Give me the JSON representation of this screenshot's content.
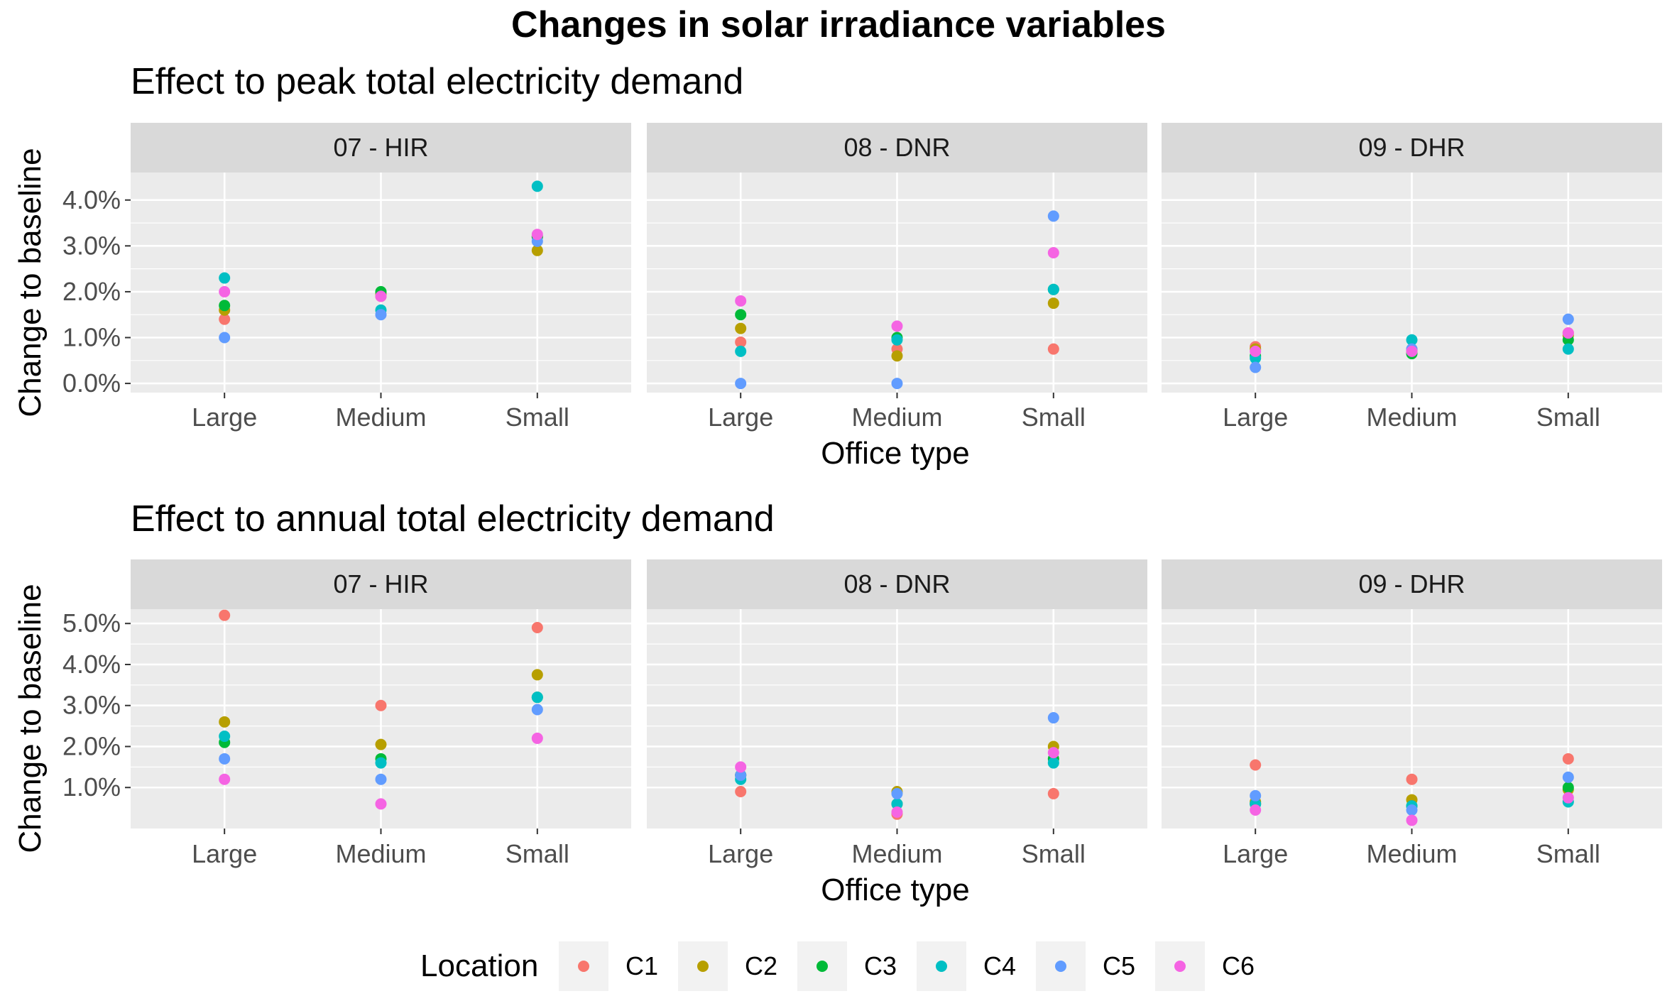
{
  "title": "Changes in solar irradiance variables",
  "chart_data": [
    {
      "type": "scatter",
      "subtitle": "Effect to peak total electricity demand",
      "xlabel": "Office type",
      "ylabel": "Change to baseline",
      "categories": [
        "Large",
        "Medium",
        "Small"
      ],
      "ylim": [
        -0.2,
        4.6
      ],
      "yticks": [
        0,
        1,
        2,
        3,
        4
      ],
      "ytick_labels": [
        "0.0%",
        "1.0%",
        "2.0%",
        "3.0%",
        "4.0%"
      ],
      "grid": true,
      "facets": [
        {
          "name": "07 - HIR",
          "series": [
            {
              "name": "C1",
              "values": [
                1.4,
                1.9,
                3.2
              ]
            },
            {
              "name": "C2",
              "values": [
                1.6,
                1.95,
                2.9
              ]
            },
            {
              "name": "C3",
              "values": [
                1.7,
                2.0,
                3.2
              ]
            },
            {
              "name": "C4",
              "values": [
                2.3,
                1.6,
                4.3
              ]
            },
            {
              "name": "C5",
              "values": [
                1.0,
                1.5,
                3.1
              ]
            },
            {
              "name": "C6",
              "values": [
                2.0,
                1.9,
                3.25
              ]
            }
          ]
        },
        {
          "name": "08 - DNR",
          "series": [
            {
              "name": "C1",
              "values": [
                0.9,
                0.75,
                0.75
              ]
            },
            {
              "name": "C2",
              "values": [
                1.2,
                0.6,
                1.75
              ]
            },
            {
              "name": "C3",
              "values": [
                1.5,
                1.0,
                2.05
              ]
            },
            {
              "name": "C4",
              "values": [
                0.7,
                0.95,
                2.05
              ]
            },
            {
              "name": "C5",
              "values": [
                0.0,
                0.0,
                3.65
              ]
            },
            {
              "name": "C6",
              "values": [
                1.8,
                1.25,
                2.85
              ]
            }
          ]
        },
        {
          "name": "09 - DHR",
          "series": [
            {
              "name": "C1",
              "values": [
                0.8,
                0.75,
                1.1
              ]
            },
            {
              "name": "C2",
              "values": [
                0.75,
                0.7,
                1.05
              ]
            },
            {
              "name": "C3",
              "values": [
                0.6,
                0.65,
                0.95
              ]
            },
            {
              "name": "C4",
              "values": [
                0.55,
                0.95,
                0.75
              ]
            },
            {
              "name": "C5",
              "values": [
                0.35,
                0.75,
                1.4
              ]
            },
            {
              "name": "C6",
              "values": [
                0.7,
                0.7,
                1.1
              ]
            }
          ]
        }
      ]
    },
    {
      "type": "scatter",
      "subtitle": "Effect to annual total electricity demand",
      "xlabel": "Office type",
      "ylabel": "Change to baseline",
      "categories": [
        "Large",
        "Medium",
        "Small"
      ],
      "ylim": [
        0.0,
        5.35
      ],
      "yticks": [
        1,
        2,
        3,
        4,
        5
      ],
      "ytick_labels": [
        "1.0%",
        "2.0%",
        "3.0%",
        "4.0%",
        "5.0%"
      ],
      "grid": true,
      "facets": [
        {
          "name": "07 - HIR",
          "series": [
            {
              "name": "C1",
              "values": [
                5.2,
                3.0,
                4.9
              ]
            },
            {
              "name": "C2",
              "values": [
                2.6,
                2.05,
                3.75
              ]
            },
            {
              "name": "C3",
              "values": [
                2.1,
                1.7,
                3.2
              ]
            },
            {
              "name": "C4",
              "values": [
                2.25,
                1.6,
                3.2
              ]
            },
            {
              "name": "C5",
              "values": [
                1.7,
                1.2,
                2.9
              ]
            },
            {
              "name": "C6",
              "values": [
                1.2,
                0.6,
                2.2
              ]
            }
          ]
        },
        {
          "name": "08 - DNR",
          "series": [
            {
              "name": "C1",
              "values": [
                0.9,
                0.35,
                0.85
              ]
            },
            {
              "name": "C2",
              "values": [
                1.3,
                0.9,
                2.0
              ]
            },
            {
              "name": "C3",
              "values": [
                1.3,
                0.6,
                1.7
              ]
            },
            {
              "name": "C4",
              "values": [
                1.2,
                0.6,
                1.6
              ]
            },
            {
              "name": "C5",
              "values": [
                1.3,
                0.85,
                2.7
              ]
            },
            {
              "name": "C6",
              "values": [
                1.5,
                0.4,
                1.85
              ]
            }
          ]
        },
        {
          "name": "09 - DHR",
          "series": [
            {
              "name": "C1",
              "values": [
                1.55,
                1.2,
                1.7
              ]
            },
            {
              "name": "C2",
              "values": [
                0.65,
                0.7,
                0.95
              ]
            },
            {
              "name": "C3",
              "values": [
                0.6,
                0.55,
                1.0
              ]
            },
            {
              "name": "C4",
              "values": [
                0.6,
                0.55,
                0.65
              ]
            },
            {
              "name": "C5",
              "values": [
                0.8,
                0.45,
                1.25
              ]
            },
            {
              "name": "C6",
              "values": [
                0.45,
                0.2,
                0.75
              ]
            }
          ]
        }
      ]
    }
  ],
  "legend": {
    "title": "Location",
    "position": "bottom",
    "items": [
      {
        "label": "C1",
        "color": "#F8766D"
      },
      {
        "label": "C2",
        "color": "#B79F00"
      },
      {
        "label": "C3",
        "color": "#00BA38"
      },
      {
        "label": "C4",
        "color": "#00BFC4"
      },
      {
        "label": "C5",
        "color": "#619CFF"
      },
      {
        "label": "C6",
        "color": "#F564E3"
      }
    ]
  }
}
